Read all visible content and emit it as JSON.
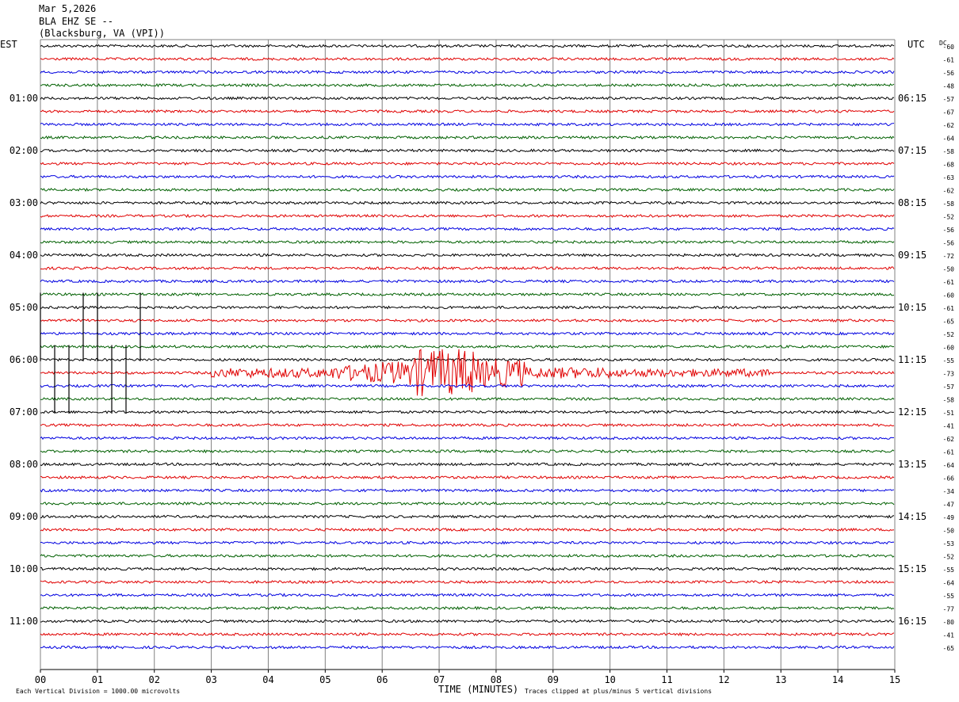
{
  "header": {
    "date": "Mar 5,2026",
    "station": "BLA EHZ SE --",
    "location": "(Blacksburg, VA (VPI))"
  },
  "axes": {
    "left_tz": "EST",
    "right_tz": "UTC",
    "dc_label": "DC",
    "x_title": "TIME (MINUTES)",
    "footer_left": "Each Vertical Division = 1000.00 microvolts",
    "footer_right": "Traces clipped at plus/minus 5 vertical divisions"
  },
  "colors": {
    "trace_cycle": [
      "#000000",
      "#e00000",
      "#0000e0",
      "#006000"
    ],
    "grid": "#808080",
    "text": "#000000"
  },
  "chart_data": {
    "type": "line",
    "title": "BLA EHZ SE --",
    "xlabel": "TIME (MINUTES)",
    "x_ticks": [
      "00",
      "01",
      "02",
      "03",
      "04",
      "05",
      "06",
      "07",
      "08",
      "09",
      "10",
      "11",
      "12",
      "13",
      "14",
      "15"
    ],
    "xlim": [
      0,
      15
    ],
    "rows_per_hour": 4,
    "left_hour_labels": [
      "01:00",
      "02:00",
      "03:00",
      "04:00",
      "05:00",
      "06:00",
      "07:00",
      "08:00",
      "09:00",
      "10:00",
      "11:00"
    ],
    "right_hour_labels": [
      "06:15",
      "07:15",
      "08:15",
      "09:15",
      "10:15",
      "11:15",
      "12:15",
      "13:15",
      "14:15",
      "15:15",
      "16:15"
    ],
    "dc_offsets": [
      -60,
      -61,
      -56,
      -48,
      -57,
      -67,
      -62,
      -64,
      -58,
      -68,
      -63,
      -62,
      -58,
      -52,
      -56,
      -56,
      -72,
      -50,
      -61,
      -60,
      -61,
      -65,
      -52,
      -60,
      -55,
      -73,
      -57,
      -58,
      -51,
      -41,
      -62,
      -61,
      -64,
      -66,
      -34,
      -47,
      -49,
      -50,
      -53,
      -52,
      -55,
      -64,
      -55,
      -77,
      -80,
      -41,
      -65
    ],
    "events": [
      {
        "row": 25,
        "start_min": 3.0,
        "peak_min": 7.0,
        "end_min": 12.8,
        "description": "earthquake"
      }
    ]
  }
}
